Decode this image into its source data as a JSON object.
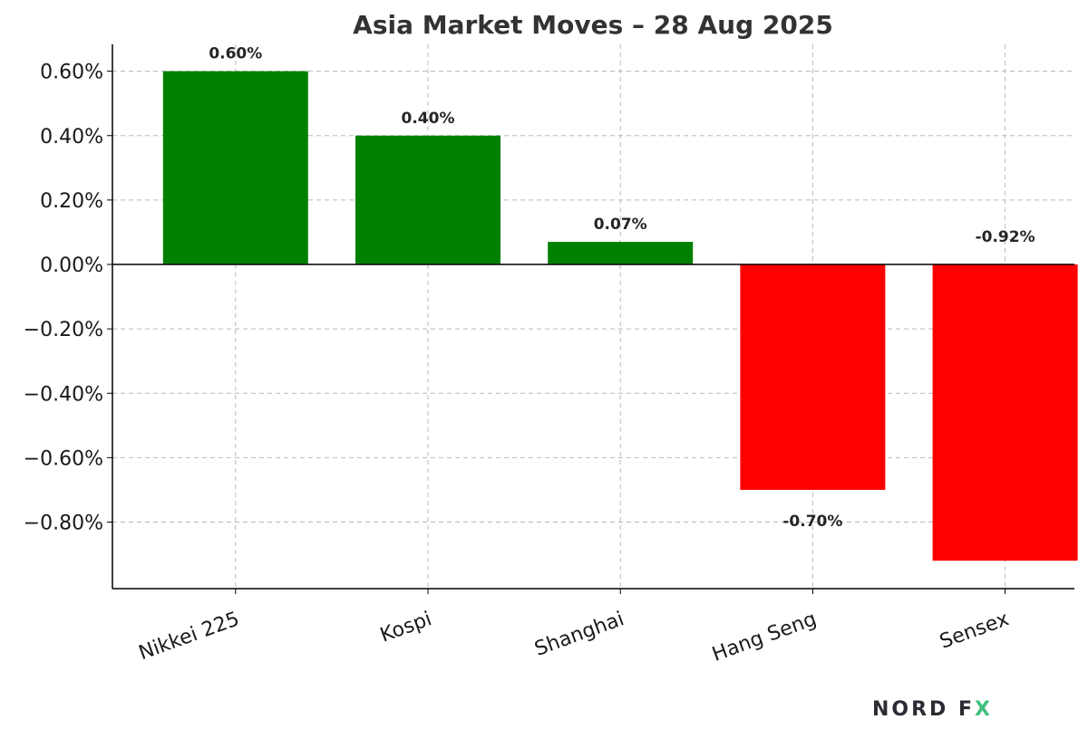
{
  "chart_data": {
    "type": "bar",
    "title": "Asia Market Moves – 28 Aug 2025",
    "categories": [
      "Nikkei 225",
      "Kospi",
      "Shanghai",
      "Hang Seng",
      "Sensex"
    ],
    "values": [
      0.6,
      0.4,
      0.07,
      -0.7,
      -0.92
    ],
    "data_labels": [
      "0.60%",
      "0.40%",
      "0.07%",
      "-0.70%",
      "-0.92%"
    ],
    "yticks": [
      0.6,
      0.4,
      0.2,
      0.0,
      -0.2,
      -0.4,
      -0.6,
      -0.8
    ],
    "ytick_labels": [
      "0.60%",
      "0.40%",
      "0.20%",
      "0.00%",
      "−0.20%",
      "−0.40%",
      "−0.60%",
      "−0.80%"
    ],
    "ylim": [
      -1.0,
      0.68
    ],
    "xlabel": "",
    "ylabel": "",
    "grid": true,
    "colors": {
      "positive": "#008000",
      "negative": "#ff0000"
    }
  },
  "logo": {
    "text_main": "NORD F",
    "text_accent": "X",
    "main_color": "#2b2b33",
    "accent_color": "#3fbf7f"
  }
}
